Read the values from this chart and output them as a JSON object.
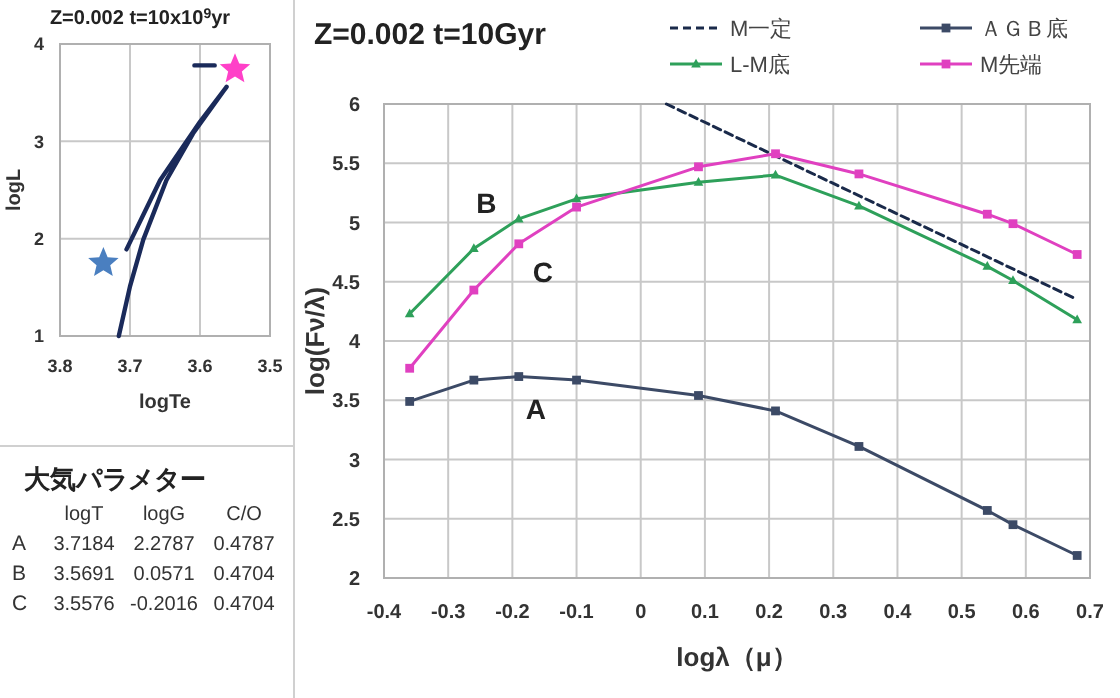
{
  "chart_data": [
    {
      "type": "line",
      "title": "Z=0.002 t=10x10$^{9}$yr",
      "xlabel": "logTe",
      "ylabel": "logL",
      "xlim": [
        3.8,
        3.5
      ],
      "ylim": [
        1,
        4
      ],
      "xticks": [
        3.8,
        3.7,
        3.6,
        3.5
      ],
      "yticks": [
        1,
        2,
        3,
        4
      ],
      "grid": true,
      "legend": false,
      "series": [
        {
          "type": "line",
          "color": "#1a2a5a",
          "marker": "none",
          "x": [
            3.716,
            3.7,
            3.681,
            3.648,
            3.61,
            3.562,
            3.6,
            3.657,
            3.705,
            null,
            3.608,
            3.579
          ],
          "values": [
            1.0,
            1.51,
            1.99,
            2.6,
            3.08,
            3.56,
            3.2,
            2.6,
            1.89,
            null,
            3.78,
            3.78
          ]
        },
        {
          "type": "scatter",
          "color": "#4a7fc0",
          "marker": "star",
          "x": [
            3.738
          ],
          "values": [
            1.75
          ]
        },
        {
          "type": "scatter",
          "color": "#ff40c8",
          "marker": "star",
          "x": [
            3.55
          ],
          "values": [
            3.74
          ]
        }
      ]
    },
    {
      "type": "other",
      "title": "大気パラメター",
      "categories": [
        "logT",
        "logG",
        "C/O"
      ],
      "y_categories": [
        "A",
        "B",
        "C"
      ],
      "cell_labels": [
        [
          "3.7184",
          "2.2787",
          "0.4787"
        ],
        [
          "3.5691",
          "0.0571",
          "0.4704"
        ],
        [
          "3.5576",
          "-0.2016",
          "0.4704"
        ]
      ]
    },
    {
      "type": "line",
      "title": "Z=0.002  t=10Gyr",
      "xlabel": "logλ（μ）",
      "ylabel": "log(Fν/λ)",
      "xlim": [
        -0.4,
        0.7
      ],
      "ylim": [
        2,
        6
      ],
      "xticks": [
        -0.4,
        -0.3,
        -0.2,
        -0.1,
        0,
        0.1,
        0.2,
        0.3,
        0.4,
        0.5,
        0.6,
        0.7
      ],
      "yticks": [
        2,
        2.5,
        3,
        3.5,
        4,
        4.5,
        5,
        5.5,
        6
      ],
      "grid": true,
      "legend": "top right",
      "x": [
        -0.36,
        -0.26,
        -0.19,
        -0.1,
        0.09,
        0.21,
        0.34,
        0.54,
        0.58,
        0.68
      ],
      "series": [
        {
          "name": "M一定",
          "color": "#1a2a4a",
          "marker": "none",
          "line_style": "dashed",
          "x": [
            0.04,
            0.68
          ],
          "values": [
            6.0,
            4.35
          ]
        },
        {
          "name": "ＡＧＢ底",
          "color": "#3c4a66",
          "marker": "square",
          "values": [
            3.49,
            3.67,
            3.7,
            3.67,
            3.54,
            3.41,
            3.11,
            2.57,
            2.45,
            2.19
          ]
        },
        {
          "name": "L-M底",
          "color": "#2ea05a",
          "marker": "triangle",
          "values": [
            4.23,
            4.78,
            5.03,
            5.2,
            5.34,
            5.4,
            5.14,
            4.63,
            4.51,
            4.18
          ]
        },
        {
          "name": "M先端",
          "color": "#e040c0",
          "marker": "square",
          "values": [
            3.77,
            4.43,
            4.82,
            5.13,
            5.47,
            5.58,
            5.41,
            5.07,
            4.99,
            4.73
          ]
        }
      ],
      "annotations": [
        "B",
        "C",
        "A"
      ]
    }
  ]
}
